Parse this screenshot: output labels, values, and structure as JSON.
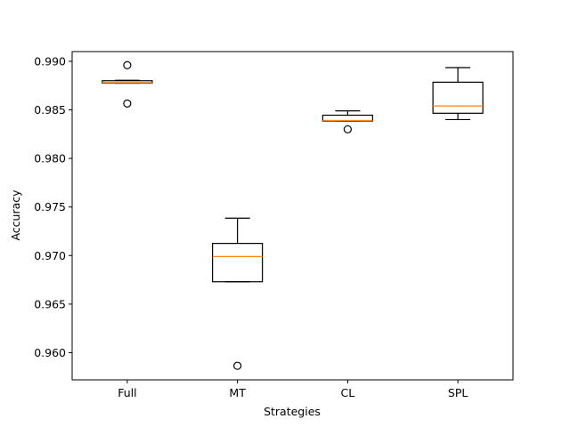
{
  "chart_data": {
    "type": "box",
    "title": "",
    "xlabel": "Strategies",
    "ylabel": "Accuracy",
    "categories": [
      "Full",
      "MT",
      "CL",
      "SPL"
    ],
    "ylim": [
      0.9572,
      0.991
    ],
    "yticks": [
      0.96,
      0.965,
      0.97,
      0.975,
      0.98,
      0.985,
      0.99
    ],
    "ytick_labels": [
      "0.960",
      "0.965",
      "0.970",
      "0.975",
      "0.980",
      "0.985",
      "0.990"
    ],
    "grid": false,
    "legend": "none",
    "boxes": [
      {
        "category": "Full",
        "whisker_low": 0.98775,
        "q1": 0.98775,
        "median": 0.9878,
        "q3": 0.988,
        "whisker_high": 0.98805,
        "outliers": [
          0.9896,
          0.98565
        ]
      },
      {
        "category": "MT",
        "whisker_low": 0.9673,
        "q1": 0.9673,
        "median": 0.9699,
        "q3": 0.97125,
        "whisker_high": 0.97385,
        "outliers": [
          0.95865
        ]
      },
      {
        "category": "CL",
        "whisker_low": 0.98385,
        "q1": 0.98385,
        "median": 0.9839,
        "q3": 0.98445,
        "whisker_high": 0.9849,
        "outliers": [
          0.983
        ]
      },
      {
        "category": "SPL",
        "whisker_low": 0.984,
        "q1": 0.98465,
        "median": 0.9854,
        "q3": 0.98785,
        "whisker_high": 0.98935,
        "outliers": []
      }
    ],
    "colors": {
      "box": "#000000",
      "median": "#ff7f0e",
      "axes": "#000000",
      "background": "#ffffff"
    }
  }
}
